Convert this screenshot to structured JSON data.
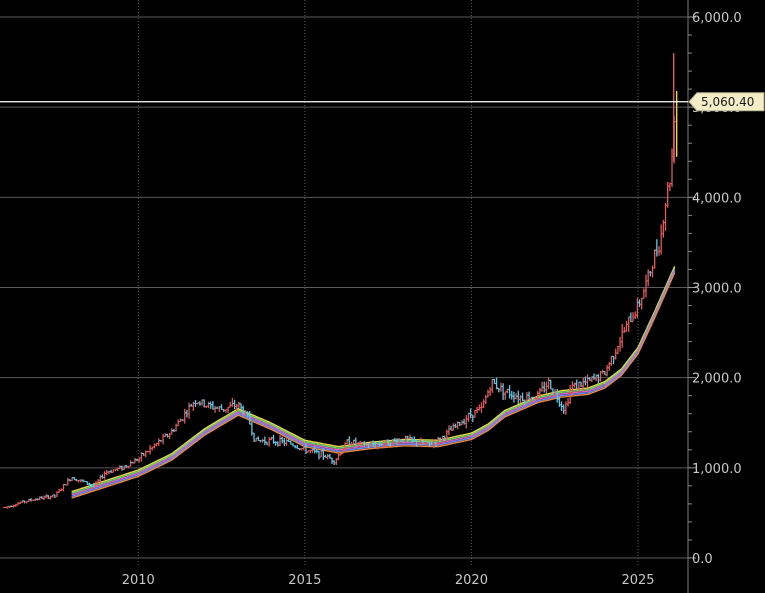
{
  "chart_data": {
    "type": "line",
    "title": "",
    "xlabel": "",
    "ylabel": "",
    "xlim": [
      2006.0,
      2026.5
    ],
    "ylim": [
      0,
      6000
    ],
    "y_ticks": [
      0,
      1000,
      2000,
      3000,
      4000,
      5000,
      6000
    ],
    "y_tick_labels": [
      "0.0",
      "1,000.0",
      "2,000.0",
      "3,000.0",
      "4,000.0",
      "5,000.0",
      "6,000.0"
    ],
    "x_ticks": [
      2010,
      2015,
      2020,
      2025
    ],
    "x_tick_labels": [
      "2010",
      "2015",
      "2020",
      "2025"
    ],
    "grid": true,
    "last_price": 5060.4,
    "last_price_label": "5,060.40",
    "colors": {
      "up": "#e05a5a",
      "down": "#5ec8e8",
      "ma": [
        "#e8d84a",
        "#6ad86a",
        "#e060c0",
        "#6a8cff",
        "#f08a3a"
      ],
      "price_line": "#ffffff",
      "tag_bg": "#f3edc8"
    },
    "series": [
      {
        "type": "price",
        "x": [
          2006.0,
          2006.5,
          2007.0,
          2007.5,
          2008.0,
          2008.3,
          2008.7,
          2009.0,
          2009.5,
          2010.0,
          2010.5,
          2011.0,
          2011.3,
          2011.7,
          2012.0,
          2012.5,
          2013.0,
          2013.3,
          2013.5,
          2014.0,
          2014.5,
          2015.0,
          2015.5,
          2015.9,
          2016.3,
          2016.7,
          2017.0,
          2017.5,
          2018.0,
          2018.7,
          2019.0,
          2019.5,
          2020.0,
          2020.3,
          2020.6,
          2021.0,
          2021.5,
          2022.0,
          2022.3,
          2022.8,
          2023.0,
          2023.5,
          2024.0,
          2024.3,
          2024.7,
          2025.0,
          2025.3,
          2025.5,
          2025.7,
          2025.8,
          2026.0,
          2026.1
        ],
        "values": [
          560,
          620,
          660,
          690,
          900,
          850,
          800,
          950,
          1000,
          1100,
          1250,
          1400,
          1550,
          1750,
          1700,
          1650,
          1700,
          1550,
          1300,
          1300,
          1280,
          1200,
          1150,
          1080,
          1300,
          1250,
          1250,
          1280,
          1320,
          1250,
          1300,
          1450,
          1600,
          1650,
          1950,
          1850,
          1780,
          1800,
          1950,
          1650,
          1900,
          1950,
          2050,
          2300,
          2600,
          2800,
          3100,
          3350,
          3600,
          3900,
          4300,
          5060
        ]
      },
      {
        "type": "moving-average",
        "x": [
          2008.0,
          2009.0,
          2010.0,
          2011.0,
          2012.0,
          2013.0,
          2014.0,
          2015.0,
          2016.0,
          2017.0,
          2018.0,
          2019.0,
          2020.0,
          2020.5,
          2021.0,
          2022.0,
          2022.7,
          2023.5,
          2024.0,
          2024.5,
          2025.0,
          2025.5,
          2026.1
        ],
        "values": [
          700,
          820,
          940,
          1120,
          1400,
          1620,
          1460,
          1270,
          1200,
          1250,
          1280,
          1270,
          1350,
          1450,
          1600,
          1760,
          1820,
          1850,
          1920,
          2060,
          2300,
          2700,
          3200
        ]
      }
    ]
  }
}
